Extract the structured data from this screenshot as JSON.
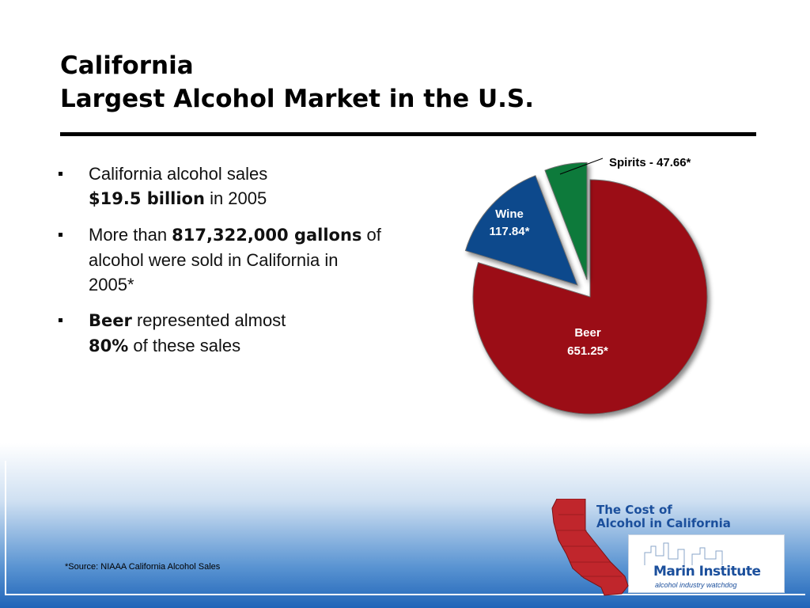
{
  "title": {
    "line1": "California",
    "line2": "Largest Alcohol Market in the U.S."
  },
  "bullets": [
    {
      "plain1": "California alcohol sales",
      "bold1": "$19.5 billion",
      "plain2": " in 2005"
    },
    {
      "plain1": "More than ",
      "bold1": "817,322,000 gallons",
      "plain2": " of alcohol were sold in California in 2005*"
    },
    {
      "plain1": "",
      "bold1": "Beer",
      "plain2": " represented almost ",
      "bold2": "80%",
      "plain3": " of these sales"
    }
  ],
  "chart_data": {
    "type": "pie",
    "slices": [
      {
        "label": "Beer",
        "value": 651.25,
        "display": "651.25*",
        "color": "#9b1014"
      },
      {
        "label": "Wine",
        "value": 117.84,
        "display": "117.84*",
        "color": "#0e4a8c"
      },
      {
        "label": "Spirits",
        "value": 47.66,
        "display": "Spirits - 47.66*",
        "color": "#0b7a3a"
      }
    ],
    "exploded": true
  },
  "footnote": "*Source: NIAAA California Alcohol Sales",
  "logo": {
    "title_line1": "The Cost of",
    "title_line2": "Alcohol in California",
    "org": "Marin Institute",
    "tagline": "alcohol industry watchdog",
    "map_color": "#c0262c",
    "brand_color": "#1b4f9c"
  }
}
